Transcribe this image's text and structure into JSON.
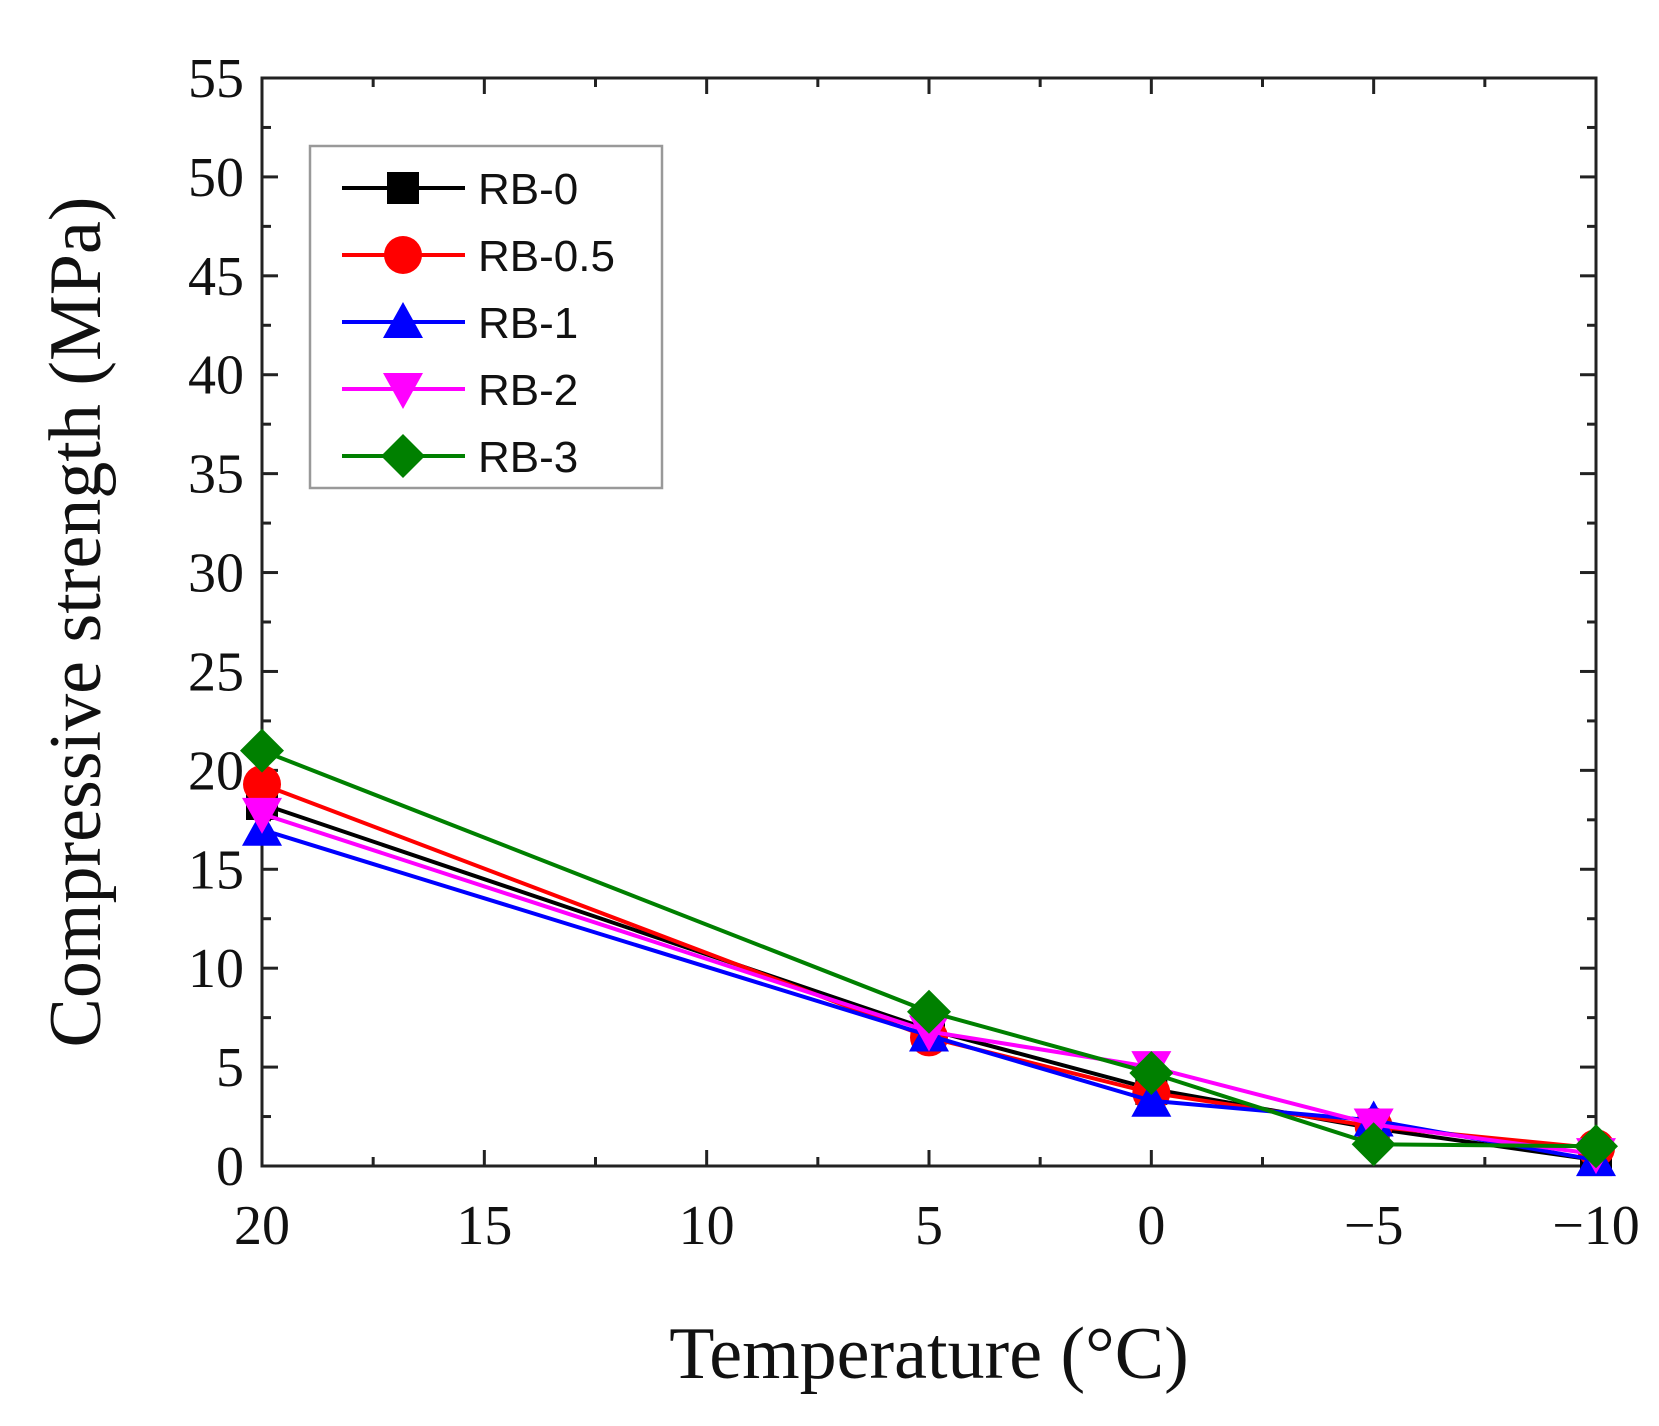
{
  "chart_data": {
    "type": "line",
    "xlabel": "Temperature (°C)",
    "ylabel": "Compressive strength (MPa)",
    "x": [
      20,
      5,
      0,
      -5,
      -10
    ],
    "xlim": [
      20,
      -10
    ],
    "ylim": [
      0,
      55
    ],
    "x_ticks": [
      20,
      15,
      10,
      5,
      0,
      -5,
      -10
    ],
    "x_tick_labels": [
      "20",
      "15",
      "10",
      "5",
      "0",
      "−5",
      "−10"
    ],
    "y_ticks": [
      0,
      5,
      10,
      15,
      20,
      25,
      30,
      35,
      40,
      45,
      50,
      55
    ],
    "y_tick_labels": [
      "0",
      "5",
      "10",
      "15",
      "20",
      "25",
      "30",
      "35",
      "40",
      "45",
      "50",
      "55"
    ],
    "grid": false,
    "legend_position": "top-left",
    "series": [
      {
        "name": "RB-0",
        "color": "#000000",
        "marker": "square",
        "values": [
          18.3,
          6.9,
          3.9,
          1.9,
          0.3
        ]
      },
      {
        "name": "RB-0.5",
        "color": "#ff0000",
        "marker": "circle",
        "values": [
          19.3,
          6.5,
          3.7,
          2.0,
          0.9
        ]
      },
      {
        "name": "RB-1",
        "color": "#0000ff",
        "marker": "triangle-up",
        "values": [
          17.0,
          6.6,
          3.3,
          2.3,
          0.3
        ]
      },
      {
        "name": "RB-2",
        "color": "#ff00ff",
        "marker": "triangle-down",
        "values": [
          17.8,
          6.8,
          5.0,
          2.1,
          0.6
        ]
      },
      {
        "name": "RB-3",
        "color": "#008000",
        "marker": "diamond",
        "values": [
          21.0,
          7.8,
          4.7,
          1.1,
          1.0
        ]
      }
    ]
  }
}
